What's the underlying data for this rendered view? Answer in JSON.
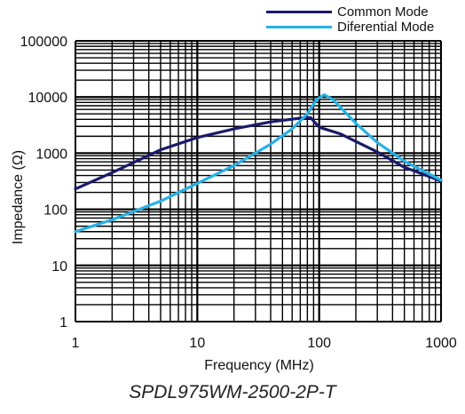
{
  "chart_data": {
    "type": "line",
    "x_scale": "log",
    "y_scale": "log",
    "xlim": [
      1,
      1000
    ],
    "ylim": [
      1,
      100000
    ],
    "x_ticks": [
      "1",
      "10",
      "100",
      "1000"
    ],
    "y_ticks": [
      "1",
      "10",
      "100",
      "1000",
      "10000",
      "100000"
    ],
    "xlabel": "Frequency (MHz)",
    "ylabel": "Impedance (Ω)",
    "caption": "SPDL975WM-2500-2P-T",
    "grid": true,
    "legend_position": "top-right",
    "series": [
      {
        "name": "Common Mode",
        "color": "#1a1a6b",
        "points": [
          [
            1,
            230
          ],
          [
            2,
            450
          ],
          [
            5,
            1150
          ],
          [
            10,
            1900
          ],
          [
            20,
            2700
          ],
          [
            40,
            3600
          ],
          [
            70,
            4200
          ],
          [
            85,
            4300
          ],
          [
            100,
            2900
          ],
          [
            150,
            2200
          ],
          [
            300,
            1050
          ],
          [
            500,
            560
          ],
          [
            1000,
            320
          ]
        ]
      },
      {
        "name": "Diferential Mode",
        "color": "#27b1e6",
        "points": [
          [
            1,
            40
          ],
          [
            2,
            65
          ],
          [
            5,
            140
          ],
          [
            10,
            290
          ],
          [
            20,
            600
          ],
          [
            40,
            1450
          ],
          [
            60,
            2700
          ],
          [
            80,
            5000
          ],
          [
            95,
            9000
          ],
          [
            110,
            11000
          ],
          [
            130,
            9000
          ],
          [
            200,
            3400
          ],
          [
            300,
            1550
          ],
          [
            500,
            720
          ],
          [
            1000,
            330
          ]
        ]
      }
    ]
  }
}
